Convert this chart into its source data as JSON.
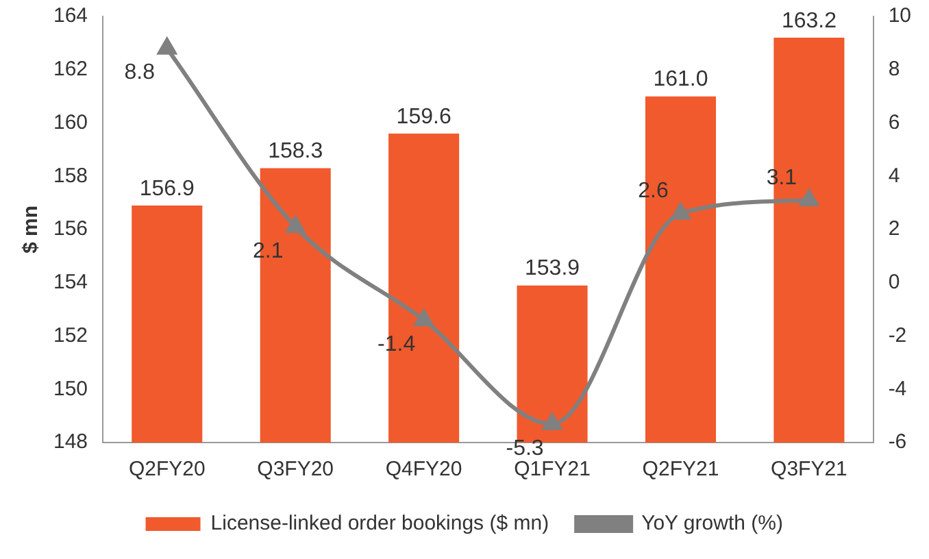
{
  "chart_data": {
    "type": "bar",
    "ylabel": "$ mn",
    "categories": [
      "Q2FY20",
      "Q3FY20",
      "Q4FY20",
      "Q1FY21",
      "Q2FY21",
      "Q3FY21"
    ],
    "series": [
      {
        "name": "License-linked order bookings ($ mn)",
        "color": "#f05a2d",
        "values": [
          156.9,
          158.3,
          159.6,
          153.9,
          161.0,
          163.2
        ],
        "value_labels": [
          "156.9",
          "158.3",
          "159.6",
          "153.9",
          "161.0",
          "163.2"
        ]
      },
      {
        "name": "YoY growth (%)",
        "type": "line",
        "axis": "y2",
        "color": "#808080",
        "marker": "triangle",
        "values": [
          8.8,
          2.1,
          -1.4,
          -5.3,
          2.6,
          3.1
        ],
        "value_labels": [
          "8.8",
          "2.1",
          "-1.4",
          "-5.3",
          "2.6",
          "3.1"
        ]
      }
    ],
    "ylim": [
      148,
      164
    ],
    "yticks": [
      148,
      150,
      152,
      154,
      156,
      158,
      160,
      162,
      164
    ],
    "y2lim": [
      -6,
      10
    ],
    "y2ticks": [
      -6,
      -4,
      -2,
      0,
      2,
      4,
      6,
      8,
      10
    ],
    "grid": false,
    "legend": "bottom"
  }
}
